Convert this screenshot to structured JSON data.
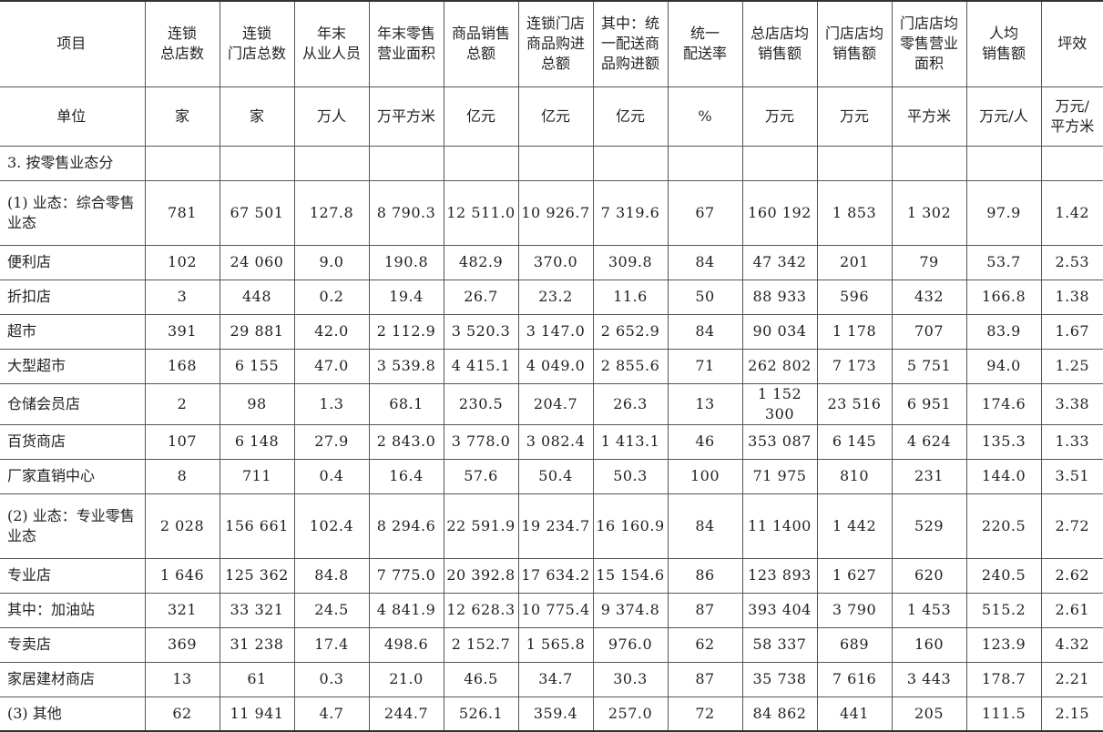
{
  "headers": [
    "项目",
    "连锁\n总店数",
    "连锁\n门店总数",
    "年末\n从业人员",
    "年末零售\n营业面积",
    "商品销售\n总额",
    "连锁门店\n商品购进\n总额",
    "其中：统\n一配送商\n品购进额",
    "统一\n配送率",
    "总店店均\n销售额",
    "门店店均\n销售额",
    "门店店均\n零售营业\n面积",
    "人均\n销售额",
    "坪效"
  ],
  "units": [
    "单位",
    "家",
    "家",
    "万人",
    "万平方米",
    "亿元",
    "亿元",
    "亿元",
    "%",
    "万元",
    "万元",
    "平方米",
    "万元/人",
    "万元/\n平方米"
  ],
  "rows": [
    {
      "label": "3. 按零售业态分",
      "values": [
        "",
        "",
        "",
        "",
        "",
        "",
        "",
        "",
        "",
        "",
        "",
        "",
        ""
      ]
    },
    {
      "label": "(1) 业态：综合零售业态",
      "tall": true,
      "values": [
        "781",
        "67 501",
        "127.8",
        "8 790.3",
        "12 511.0",
        "10 926.7",
        "7 319.6",
        "67",
        "160 192",
        "1 853",
        "1 302",
        "97.9",
        "1.42"
      ]
    },
    {
      "label": "便利店",
      "values": [
        "102",
        "24 060",
        "9.0",
        "190.8",
        "482.9",
        "370.0",
        "309.8",
        "84",
        "47 342",
        "201",
        "79",
        "53.7",
        "2.53"
      ]
    },
    {
      "label": "折扣店",
      "values": [
        "3",
        "448",
        "0.2",
        "19.4",
        "26.7",
        "23.2",
        "11.6",
        "50",
        "88 933",
        "596",
        "432",
        "166.8",
        "1.38"
      ]
    },
    {
      "label": "超市",
      "values": [
        "391",
        "29 881",
        "42.0",
        "2 112.9",
        "3 520.3",
        "3 147.0",
        "2 652.9",
        "84",
        "90 034",
        "1 178",
        "707",
        "83.9",
        "1.67"
      ]
    },
    {
      "label": "大型超市",
      "values": [
        "168",
        "6 155",
        "47.0",
        "3 539.8",
        "4 415.1",
        "4 049.0",
        "2 855.6",
        "71",
        "262 802",
        "7 173",
        "5 751",
        "94.0",
        "1.25"
      ]
    },
    {
      "label": "仓储会员店",
      "values": [
        "2",
        "98",
        "1.3",
        "68.1",
        "230.5",
        "204.7",
        "26.3",
        "13",
        "1 152 300",
        "23 516",
        "6 951",
        "174.6",
        "3.38"
      ]
    },
    {
      "label": "百货商店",
      "values": [
        "107",
        "6 148",
        "27.9",
        "2 843.0",
        "3 778.0",
        "3 082.4",
        "1 413.1",
        "46",
        "353 087",
        "6 145",
        "4 624",
        "135.3",
        "1.33"
      ]
    },
    {
      "label": "厂家直销中心",
      "values": [
        "8",
        "711",
        "0.4",
        "16.4",
        "57.6",
        "50.4",
        "50.3",
        "100",
        "71 975",
        "810",
        "231",
        "144.0",
        "3.51"
      ]
    },
    {
      "label": "(2) 业态：专业零售业态",
      "tall": true,
      "values": [
        "2 028",
        "156 661",
        "102.4",
        "8 294.6",
        "22 591.9",
        "19 234.7",
        "16 160.9",
        "84",
        "11 1400",
        "1 442",
        "529",
        "220.5",
        "2.72"
      ]
    },
    {
      "label": "专业店",
      "values": [
        "1 646",
        "125 362",
        "84.8",
        "7 775.0",
        "20 392.8",
        "17 634.2",
        "15 154.6",
        "86",
        "123 893",
        "1 627",
        "620",
        "240.5",
        "2.62"
      ]
    },
    {
      "label": "其中：加油站",
      "values": [
        "321",
        "33 321",
        "24.5",
        "4 841.9",
        "12 628.3",
        "10 775.4",
        "9 374.8",
        "87",
        "393 404",
        "3 790",
        "1 453",
        "515.2",
        "2.61"
      ]
    },
    {
      "label": "专卖店",
      "values": [
        "369",
        "31 238",
        "17.4",
        "498.6",
        "2 152.7",
        "1 565.8",
        "976.0",
        "62",
        "58 337",
        "689",
        "160",
        "123.9",
        "4.32"
      ]
    },
    {
      "label": "家居建材商店",
      "values": [
        "13",
        "61",
        "0.3",
        "21.0",
        "46.5",
        "34.7",
        "30.3",
        "87",
        "35 738",
        "7 616",
        "3 443",
        "178.7",
        "2.21"
      ]
    },
    {
      "label": "(3) 其他",
      "values": [
        "62",
        "11 941",
        "4.7",
        "244.7",
        "526.1",
        "359.4",
        "257.0",
        "72",
        "84 862",
        "441",
        "205",
        "111.5",
        "2.15"
      ]
    }
  ]
}
